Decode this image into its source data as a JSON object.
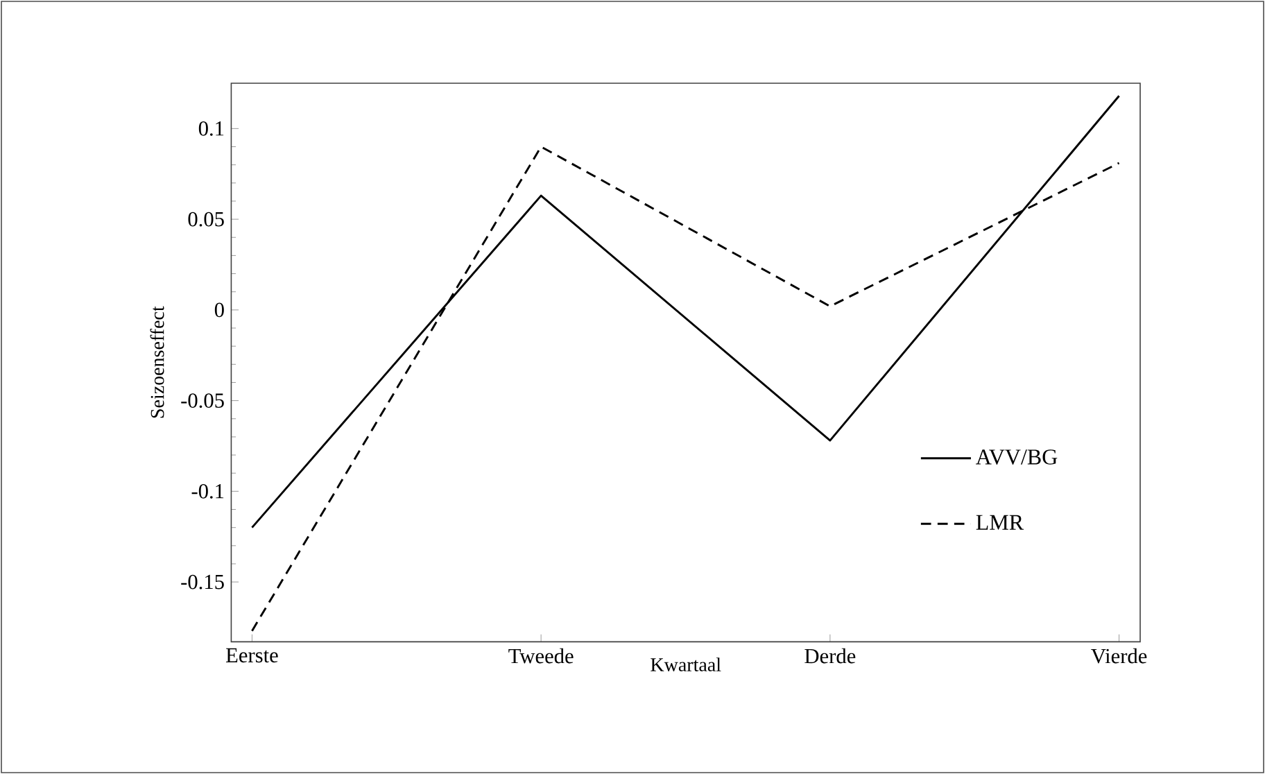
{
  "chart_data": {
    "type": "line",
    "xlabel": "Kwartaal",
    "ylabel": "Seizoenseffect",
    "categories": [
      "Eerste",
      "Tweede",
      "Derde",
      "Vierde"
    ],
    "series": [
      {
        "name": "AVV/BG",
        "color": "#000000",
        "line_style": "solid",
        "values": [
          -0.12,
          0.063,
          -0.072,
          0.118
        ]
      },
      {
        "name": "LMR",
        "color": "#000000",
        "line_style": "dashed",
        "values": [
          -0.177,
          0.09,
          0.002,
          0.081
        ]
      }
    ],
    "ylim": [
      -0.183,
      0.125
    ],
    "yticks": [
      -0.15,
      -0.1,
      -0.05,
      0,
      0.05,
      0.1
    ],
    "grid": false,
    "legend": "bottom right",
    "marker": "none"
  }
}
